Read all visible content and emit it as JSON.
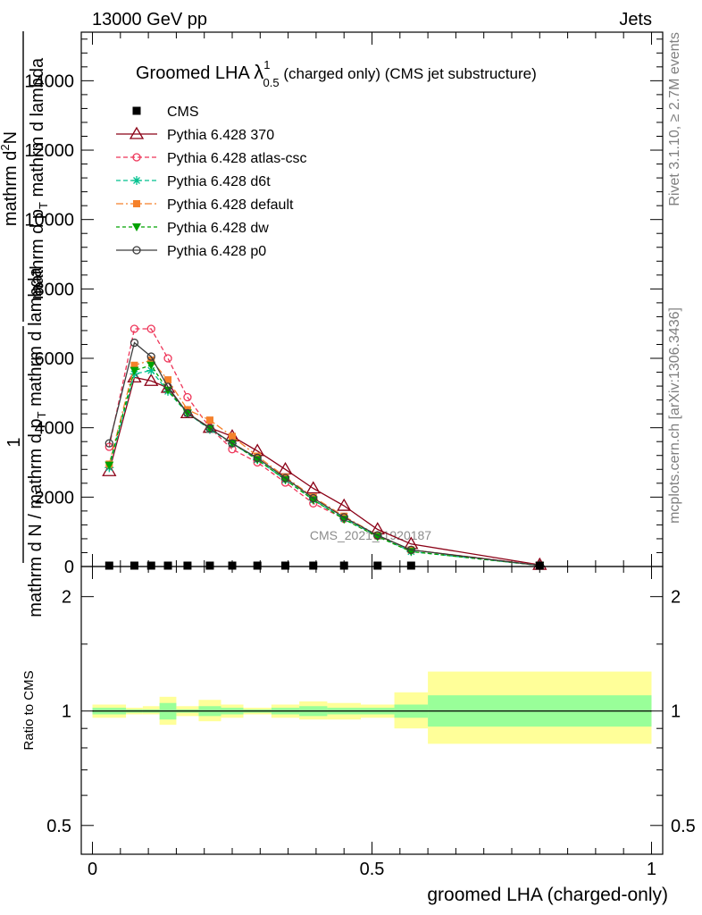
{
  "header": {
    "left": "13000 GeV pp",
    "right": "Jets"
  },
  "side_labels": {
    "rivet": "Rivet 3.1.10, ≥ 2.7M events",
    "mcplots": "mcplots.cern.ch [arXiv:1306.3436]"
  },
  "watermark": "CMS_2021_I1920187",
  "colors": {
    "cms": "#000000",
    "p370": "#8b0016",
    "atlas_csc": "#ee3559",
    "d6t": "#00c18e",
    "default": "#f5812b",
    "dw": "#00a200",
    "p0": "#3c3c3c",
    "band_inner": "#99ff99",
    "band_outer": "#ffff99"
  },
  "chart_data": [
    {
      "type": "line",
      "title_main": "Groomed LHA ",
      "title_sym": "λ",
      "title_sup": "1",
      "title_sub": "0.5",
      "title_rest": " (charged only) (CMS jet substructure)",
      "ylabel": {
        "part1": "mathrm d N / mathrm d p",
        "part1_sub": "T",
        "part1_rest": " mathrm d lambda",
        "top": "mathrm d",
        "top_sup": "2",
        "top_rest": "N",
        "bottom": "mathrm d p",
        "bottom_sub": "T",
        "bottom_rest": " mathrm d lambda",
        "prefix": "1"
      },
      "ylim": [
        0,
        15400
      ],
      "xlim": [
        -0.02,
        1.02
      ],
      "yticks": [
        0,
        2000,
        4000,
        6000,
        8000,
        10000,
        12000,
        14000
      ],
      "ytick_labels": [
        "0",
        "2000",
        "4000",
        "6000",
        "8000",
        "10000",
        "12000",
        "14000"
      ],
      "x_bin_edges": [
        0,
        0.06,
        0.09,
        0.12,
        0.15,
        0.19,
        0.23,
        0.27,
        0.32,
        0.37,
        0.42,
        0.48,
        0.54,
        0.6,
        1.0
      ],
      "x": [
        0.03,
        0.075,
        0.105,
        0.135,
        0.17,
        0.21,
        0.25,
        0.295,
        0.345,
        0.395,
        0.45,
        0.51,
        0.57,
        0.8
      ],
      "legend_position": "top-left",
      "series": [
        {
          "name": "CMS",
          "key": "cms",
          "marker": "square",
          "dash": "",
          "values": [
            0,
            0,
            0,
            0,
            0,
            0,
            0,
            0,
            0,
            0,
            0,
            0,
            0,
            0
          ]
        },
        {
          "name": "Pythia 6.428 370",
          "key": "p370",
          "marker": "triangle-open",
          "dash": "",
          "values": [
            2750,
            5450,
            5350,
            5150,
            4420,
            4000,
            3750,
            3330,
            2800,
            2250,
            1750,
            1070,
            650,
            50
          ]
        },
        {
          "name": "Pythia 6.428 atlas-csc",
          "key": "atlas_csc",
          "marker": "circle-open",
          "dash": "5,3",
          "values": [
            3450,
            6850,
            6850,
            6000,
            4880,
            4000,
            3380,
            3000,
            2420,
            1820,
            1380,
            880,
            480,
            40
          ]
        },
        {
          "name": "Pythia 6.428 d6t",
          "key": "d6t",
          "marker": "star",
          "dash": "5,3",
          "values": [
            2850,
            5550,
            5650,
            5050,
            4420,
            3950,
            3550,
            3080,
            2500,
            1920,
            1380,
            880,
            430,
            30
          ]
        },
        {
          "name": "Pythia 6.428 default",
          "key": "default",
          "marker": "square-filled",
          "dash": "8,3,2,3",
          "values": [
            2950,
            5800,
            5950,
            5380,
            4520,
            4220,
            3750,
            3180,
            2580,
            2000,
            1450,
            900,
            480,
            30
          ]
        },
        {
          "name": "Pythia 6.428 dw",
          "key": "dw",
          "marker": "triangle-down",
          "dash": "4,3",
          "values": [
            2920,
            5650,
            5800,
            5080,
            4420,
            3980,
            3550,
            3080,
            2500,
            1920,
            1360,
            860,
            430,
            30
          ]
        },
        {
          "name": "Pythia 6.428 p0",
          "key": "p0",
          "marker": "circle-open",
          "dash": "",
          "values": [
            3550,
            6450,
            6050,
            5180,
            4420,
            3980,
            3550,
            3130,
            2550,
            1970,
            1420,
            900,
            480,
            30
          ]
        }
      ]
    },
    {
      "type": "area",
      "ylabel": "Ratio to CMS",
      "xlabel": "groomed LHA (charged-only)",
      "ylog": true,
      "ylim": [
        0.42,
        2.4
      ],
      "yticks": [
        0.5,
        1,
        2
      ],
      "ytick_labels": [
        "0.5",
        "1",
        "2"
      ],
      "xticks": [
        0,
        0.5,
        1
      ],
      "xtick_labels": [
        "0",
        "0.5",
        "1"
      ],
      "reference": 1,
      "band_inner": [
        [
          0.98,
          1.02
        ],
        [
          0.99,
          1.01
        ],
        [
          0.99,
          1.01
        ],
        [
          0.95,
          1.05
        ],
        [
          0.99,
          1.01
        ],
        [
          0.97,
          1.03
        ],
        [
          0.98,
          1.02
        ],
        [
          0.99,
          1.01
        ],
        [
          0.98,
          1.02
        ],
        [
          0.97,
          1.03
        ],
        [
          0.98,
          1.02
        ],
        [
          0.98,
          1.02
        ],
        [
          0.96,
          1.04
        ],
        [
          0.91,
          1.1
        ]
      ],
      "band_outer": [
        [
          0.96,
          1.04
        ],
        [
          0.98,
          1.02
        ],
        [
          0.98,
          1.03
        ],
        [
          0.92,
          1.09
        ],
        [
          0.97,
          1.03
        ],
        [
          0.94,
          1.07
        ],
        [
          0.96,
          1.04
        ],
        [
          0.98,
          1.02
        ],
        [
          0.96,
          1.04
        ],
        [
          0.95,
          1.06
        ],
        [
          0.95,
          1.05
        ],
        [
          0.96,
          1.04
        ],
        [
          0.9,
          1.12
        ],
        [
          0.82,
          1.27
        ]
      ]
    }
  ]
}
